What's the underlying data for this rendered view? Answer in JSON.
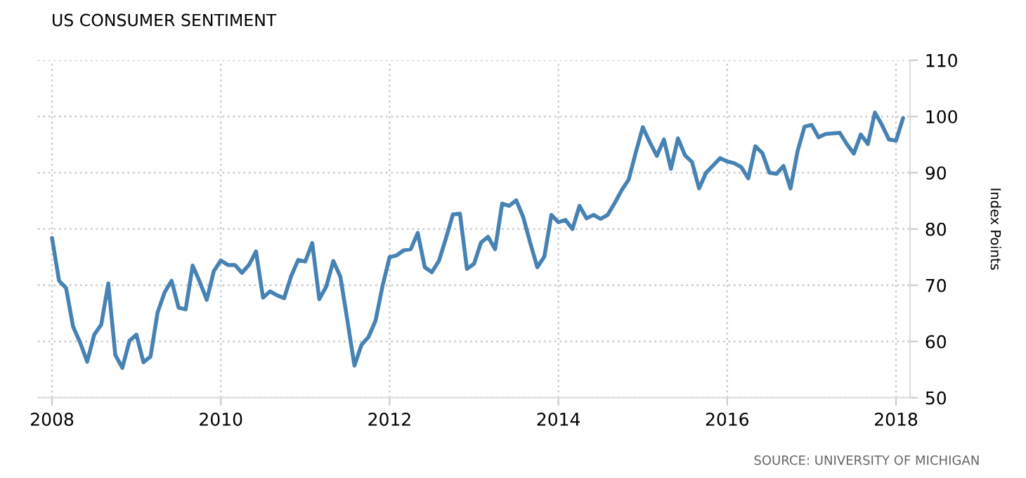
{
  "chart_data": {
    "type": "line",
    "title": "US CONSUMER SENTIMENT",
    "ylabel": "Index Points",
    "annotations": [
      "SOURCE: UNIVERSITY OF MICHIGAN"
    ],
    "x": [
      "2008-01",
      "2008-02",
      "2008-03",
      "2008-04",
      "2008-05",
      "2008-06",
      "2008-07",
      "2008-08",
      "2008-09",
      "2008-10",
      "2008-11",
      "2008-12",
      "2009-01",
      "2009-02",
      "2009-03",
      "2009-04",
      "2009-05",
      "2009-06",
      "2009-07",
      "2009-08",
      "2009-09",
      "2009-10",
      "2009-11",
      "2009-12",
      "2010-01",
      "2010-02",
      "2010-03",
      "2010-04",
      "2010-05",
      "2010-06",
      "2010-07",
      "2010-08",
      "2010-09",
      "2010-10",
      "2010-11",
      "2010-12",
      "2011-01",
      "2011-02",
      "2011-03",
      "2011-04",
      "2011-05",
      "2011-06",
      "2011-07",
      "2011-08",
      "2011-09",
      "2011-10",
      "2011-11",
      "2011-12",
      "2012-01",
      "2012-02",
      "2012-03",
      "2012-04",
      "2012-05",
      "2012-06",
      "2012-07",
      "2012-08",
      "2012-09",
      "2012-10",
      "2012-11",
      "2012-12",
      "2013-01",
      "2013-02",
      "2013-03",
      "2013-04",
      "2013-05",
      "2013-06",
      "2013-07",
      "2013-08",
      "2013-09",
      "2013-10",
      "2013-11",
      "2013-12",
      "2014-01",
      "2014-02",
      "2014-03",
      "2014-04",
      "2014-05",
      "2014-06",
      "2014-07",
      "2014-08",
      "2014-09",
      "2014-10",
      "2014-11",
      "2014-12",
      "2015-01",
      "2015-02",
      "2015-03",
      "2015-04",
      "2015-05",
      "2015-06",
      "2015-07",
      "2015-08",
      "2015-09",
      "2015-10",
      "2015-11",
      "2015-12",
      "2016-01",
      "2016-02",
      "2016-03",
      "2016-04",
      "2016-05",
      "2016-06",
      "2016-07",
      "2016-08",
      "2016-09",
      "2016-10",
      "2016-11",
      "2016-12",
      "2017-01",
      "2017-02",
      "2017-03",
      "2017-04",
      "2017-05",
      "2017-06",
      "2017-07",
      "2017-08",
      "2017-09",
      "2017-10",
      "2017-11",
      "2017-12",
      "2018-01",
      "2018-02"
    ],
    "series": [
      {
        "color": "#4682b4",
        "values": [
          78.4,
          70.8,
          69.5,
          62.6,
          59.8,
          56.4,
          61.2,
          63.0,
          70.3,
          57.6,
          55.3,
          60.1,
          61.2,
          56.3,
          57.3,
          65.1,
          68.7,
          70.8,
          66.0,
          65.7,
          73.5,
          70.6,
          67.4,
          72.5,
          74.4,
          73.6,
          73.6,
          72.2,
          73.6,
          76.0,
          67.8,
          68.9,
          68.2,
          67.7,
          71.6,
          74.5,
          74.2,
          77.5,
          67.5,
          69.8,
          74.3,
          71.5,
          63.7,
          55.7,
          59.4,
          60.8,
          63.7,
          69.9,
          75.0,
          75.3,
          76.2,
          76.4,
          79.3,
          73.2,
          72.3,
          74.3,
          78.3,
          82.6,
          82.7,
          72.9,
          73.8,
          77.6,
          78.6,
          76.4,
          84.5,
          84.1,
          85.1,
          82.1,
          77.5,
          73.2,
          75.1,
          82.5,
          81.2,
          81.6,
          80.0,
          84.1,
          81.9,
          82.5,
          81.8,
          82.5,
          84.6,
          86.9,
          88.8,
          93.6,
          98.1,
          95.4,
          93.0,
          95.9,
          90.7,
          96.1,
          93.1,
          91.9,
          87.2,
          90.0,
          91.3,
          92.6,
          92.0,
          91.7,
          91.0,
          89.0,
          94.7,
          93.5,
          90.0,
          89.8,
          91.2,
          87.2,
          93.8,
          98.2,
          98.5,
          96.3,
          96.9,
          97.0,
          97.1,
          95.1,
          93.4,
          96.8,
          95.1,
          100.7,
          98.5,
          95.9,
          95.7,
          99.7
        ]
      }
    ],
    "xlim": [
      "2007-11",
      "2018-03"
    ],
    "xticks": [
      {
        "value": "2008-01",
        "label": "2008"
      },
      {
        "value": "2010-01",
        "label": "2010"
      },
      {
        "value": "2012-01",
        "label": "2012"
      },
      {
        "value": "2014-01",
        "label": "2014"
      },
      {
        "value": "2016-01",
        "label": "2016"
      },
      {
        "value": "2018-01",
        "label": "2018"
      }
    ],
    "ylim": [
      50,
      110
    ],
    "yticks": [
      50,
      60,
      70,
      80,
      90,
      100,
      110
    ],
    "grid": true,
    "legend": false,
    "marker": "none",
    "line_style": "solid"
  }
}
